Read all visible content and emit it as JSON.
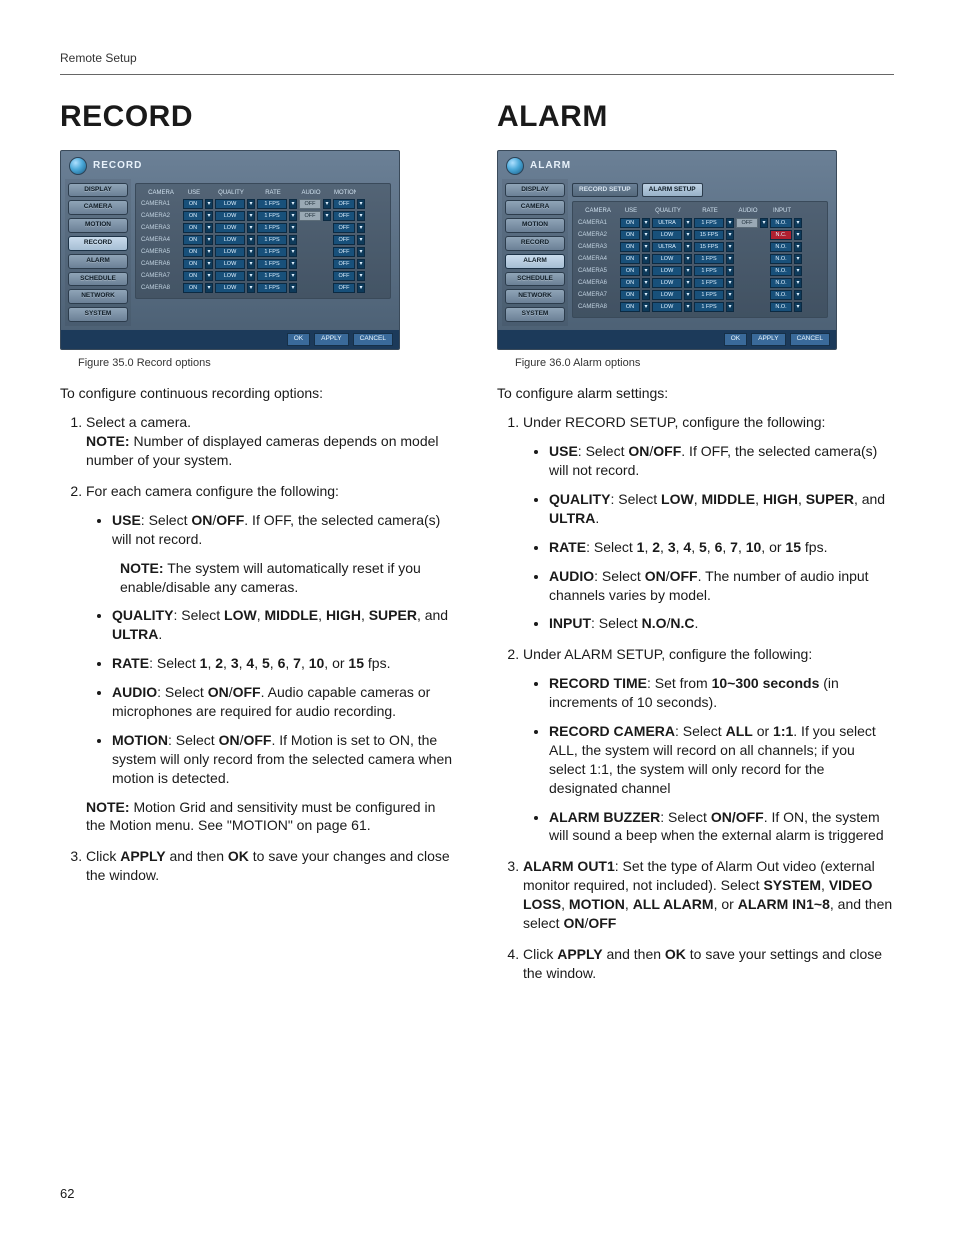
{
  "running_head": "Remote Setup",
  "page_number": "62",
  "record": {
    "heading": "RECORD",
    "panel_title": "RECORD",
    "side_items": [
      "DISPLAY",
      "CAMERA",
      "MOTION",
      "RECORD",
      "ALARM",
      "SCHEDULE",
      "NETWORK",
      "SYSTEM"
    ],
    "active_side": "RECORD",
    "grid": {
      "columns": [
        "CAMERA",
        "USE",
        "QUALITY",
        "RATE",
        "AUDIO",
        "MOTION"
      ],
      "rows": [
        {
          "cam": "CAMERA1",
          "use": "ON",
          "quality": "LOW",
          "rate": "1 FPS",
          "audio": "OFF",
          "motion": "OFF",
          "has_audio": true
        },
        {
          "cam": "CAMERA2",
          "use": "ON",
          "quality": "LOW",
          "rate": "1 FPS",
          "audio": "OFF",
          "motion": "OFF",
          "has_audio": true
        },
        {
          "cam": "CAMERA3",
          "use": "ON",
          "quality": "LOW",
          "rate": "1 FPS",
          "audio": "",
          "motion": "OFF",
          "has_audio": false
        },
        {
          "cam": "CAMERA4",
          "use": "ON",
          "quality": "LOW",
          "rate": "1 FPS",
          "audio": "",
          "motion": "OFF",
          "has_audio": false
        },
        {
          "cam": "CAMERA5",
          "use": "ON",
          "quality": "LOW",
          "rate": "1 FPS",
          "audio": "",
          "motion": "OFF",
          "has_audio": false
        },
        {
          "cam": "CAMERA6",
          "use": "ON",
          "quality": "LOW",
          "rate": "1 FPS",
          "audio": "",
          "motion": "OFF",
          "has_audio": false
        },
        {
          "cam": "CAMERA7",
          "use": "ON",
          "quality": "LOW",
          "rate": "1 FPS",
          "audio": "",
          "motion": "OFF",
          "has_audio": false
        },
        {
          "cam": "CAMERA8",
          "use": "ON",
          "quality": "LOW",
          "rate": "1 FPS",
          "audio": "",
          "motion": "OFF",
          "has_audio": false
        }
      ]
    },
    "footer_btns": [
      "OK",
      "APPLY",
      "CANCEL"
    ],
    "caption": "Figure 35.0 Record options",
    "intro": "To configure continuous recording options:",
    "step1": "Select a camera.",
    "step1_note_label": "NOTE:",
    "step1_note": " Number of displayed cameras depends on model number of your system.",
    "step2": "For each camera configure the following:",
    "b_use": ": Select ",
    "b_use_label": "USE",
    "on": "ON",
    "off": "OFF",
    "slash": "/",
    "b_use_tail": ". If OFF, the selected camera(s) will not record.",
    "b_use_note_label": "NOTE:",
    "b_use_note": " The system will automatically reset if you enable/disable any cameras.",
    "b_quality_label": "QUALITY",
    "b_quality": ": Select ",
    "low": "LOW",
    "mid": "MIDDLE",
    "high": "HIGH",
    "super": "SUPER",
    "ultra": "ULTRA",
    "and": " and ",
    "b_rate_label": "RATE",
    "b_rate": ": Select ",
    "r1": "1",
    "r2": "2",
    "r3": "3",
    "r4": "4",
    "r5": "5",
    "r6": "6",
    "r7": "7",
    "r10": "10",
    "r15": "15",
    "fps_tail": " fps.",
    "or": " or ",
    "comma": ", ",
    "period": ".",
    "b_audio_label": "AUDIO",
    "b_audio": ": Select ",
    "b_audio_tail": ". Audio capable cameras or microphones are required for audio recording.",
    "b_motion_label": "MOTION",
    "b_motion": ": Select ",
    "b_motion_tail": ". If Motion is set to ON, the system will only record from the selected camera when motion is detected.",
    "motion_note_label": "NOTE:",
    "motion_note": " Motion Grid and sensitivity must be configured in the Motion menu. See \"MOTION\" on page 61.",
    "step3_a": "Click ",
    "apply": "APPLY",
    "step3_b": " and then ",
    "ok": "OK",
    "step3_c": " to save your changes and close the window."
  },
  "alarm": {
    "heading": "ALARM",
    "panel_title": "ALARM",
    "side_items": [
      "DISPLAY",
      "CAMERA",
      "MOTION",
      "RECORD",
      "ALARM",
      "SCHEDULE",
      "NETWORK",
      "SYSTEM"
    ],
    "active_side": "ALARM",
    "tabs": [
      "RECORD SETUP",
      "ALARM SETUP"
    ],
    "grid": {
      "columns": [
        "CAMERA",
        "USE",
        "QUALITY",
        "RATE",
        "AUDIO",
        "INPUT"
      ],
      "rows": [
        {
          "cam": "CAMERA1",
          "use": "ON",
          "quality": "ULTRA",
          "rate": "1 FPS",
          "audio": "OFF",
          "input": "N.O.",
          "has_audio": true
        },
        {
          "cam": "CAMERA2",
          "use": "ON",
          "quality": "LOW",
          "rate": "15 FPS",
          "audio": "",
          "input": "N.C.",
          "has_audio": false,
          "input_red": true
        },
        {
          "cam": "CAMERA3",
          "use": "ON",
          "quality": "ULTRA",
          "rate": "15 FPS",
          "audio": "",
          "input": "N.O.",
          "has_audio": false
        },
        {
          "cam": "CAMERA4",
          "use": "ON",
          "quality": "LOW",
          "rate": "1 FPS",
          "audio": "",
          "input": "N.O.",
          "has_audio": false
        },
        {
          "cam": "CAMERA5",
          "use": "ON",
          "quality": "LOW",
          "rate": "1 FPS",
          "audio": "",
          "input": "N.O.",
          "has_audio": false
        },
        {
          "cam": "CAMERA6",
          "use": "ON",
          "quality": "LOW",
          "rate": "1 FPS",
          "audio": "",
          "input": "N.O.",
          "has_audio": false
        },
        {
          "cam": "CAMERA7",
          "use": "ON",
          "quality": "LOW",
          "rate": "1 FPS",
          "audio": "",
          "input": "N.O.",
          "has_audio": false
        },
        {
          "cam": "CAMERA8",
          "use": "ON",
          "quality": "LOW",
          "rate": "1 FPS",
          "audio": "",
          "input": "N.O.",
          "has_audio": false
        }
      ]
    },
    "footer_btns": [
      "OK",
      "APPLY",
      "CANCEL"
    ],
    "caption": "Figure 36.0 Alarm options",
    "intro": "To configure alarm settings:",
    "step1": "Under RECORD SETUP, configure the following:",
    "b_use_label": "USE",
    "b_use": ": Select ",
    "on": "ON",
    "off": "OFF",
    "slash": "/",
    "b_use_tail": ". If OFF, the selected camera(s) will not record.",
    "b_quality_label": "QUALITY",
    "b_quality": ": Select ",
    "low": "LOW",
    "mid": "MIDDLE",
    "high": "HIGH",
    "super": "SUPER",
    "ultra": "ULTRA",
    "and": " and ",
    "b_rate_label": "RATE",
    "b_rate": ": Select ",
    "r1": "1",
    "r2": "2",
    "r3": "3",
    "r4": "4",
    "r5": "5",
    "r6": "6",
    "r7": "7",
    "r10": "10",
    "r15": "15",
    "fps_tail": " fps.",
    "or": " or ",
    "comma": ", ",
    "period": ".",
    "b_audio_label": "AUDIO",
    "b_audio": ": Select ",
    "b_audio_tail": ". The number of audio input channels varies by model.",
    "b_input_label": "INPUT",
    "b_input": ": Select ",
    "no": "N.O",
    "nc": "N.C",
    "step2": "Under ALARM SETUP, configure the following:",
    "b_rt_label": "RECORD TIME",
    "b_rt": ": Set from ",
    "rt_val": "10~300 seconds",
    "rt_tail": " (in increments of 10 seconds).",
    "b_rc_label": "RECORD CAMERA",
    "b_rc": ": Select ",
    "all": "ALL",
    "oneone": "1:1",
    "b_rc_tail": ". If you select ALL, the system will record on all channels; if you select 1:1, the system will only record for the designated channel",
    "b_ab_label": "ALARM BUZZER",
    "b_ab": ": Select ",
    "onoff": "ON/OFF",
    "b_ab_tail": ". If ON, the system will sound a beep when the external alarm is triggered",
    "step3_label": "ALARM OUT1",
    "step3_a": ": Set the type of Alarm Out video (external monitor required, not included). Select ",
    "sys": "SYSTEM",
    "vl": "VIDEO LOSS",
    "mo": "MOTION",
    "aa": "ALL ALARM",
    "ai": "ALARM IN1~8",
    "step3_b": ", and then select ",
    "step4_a": "Click ",
    "apply": "APPLY",
    "step4_b": " and then ",
    "ok": "OK",
    "step4_c": " to save your settings and close the window."
  }
}
